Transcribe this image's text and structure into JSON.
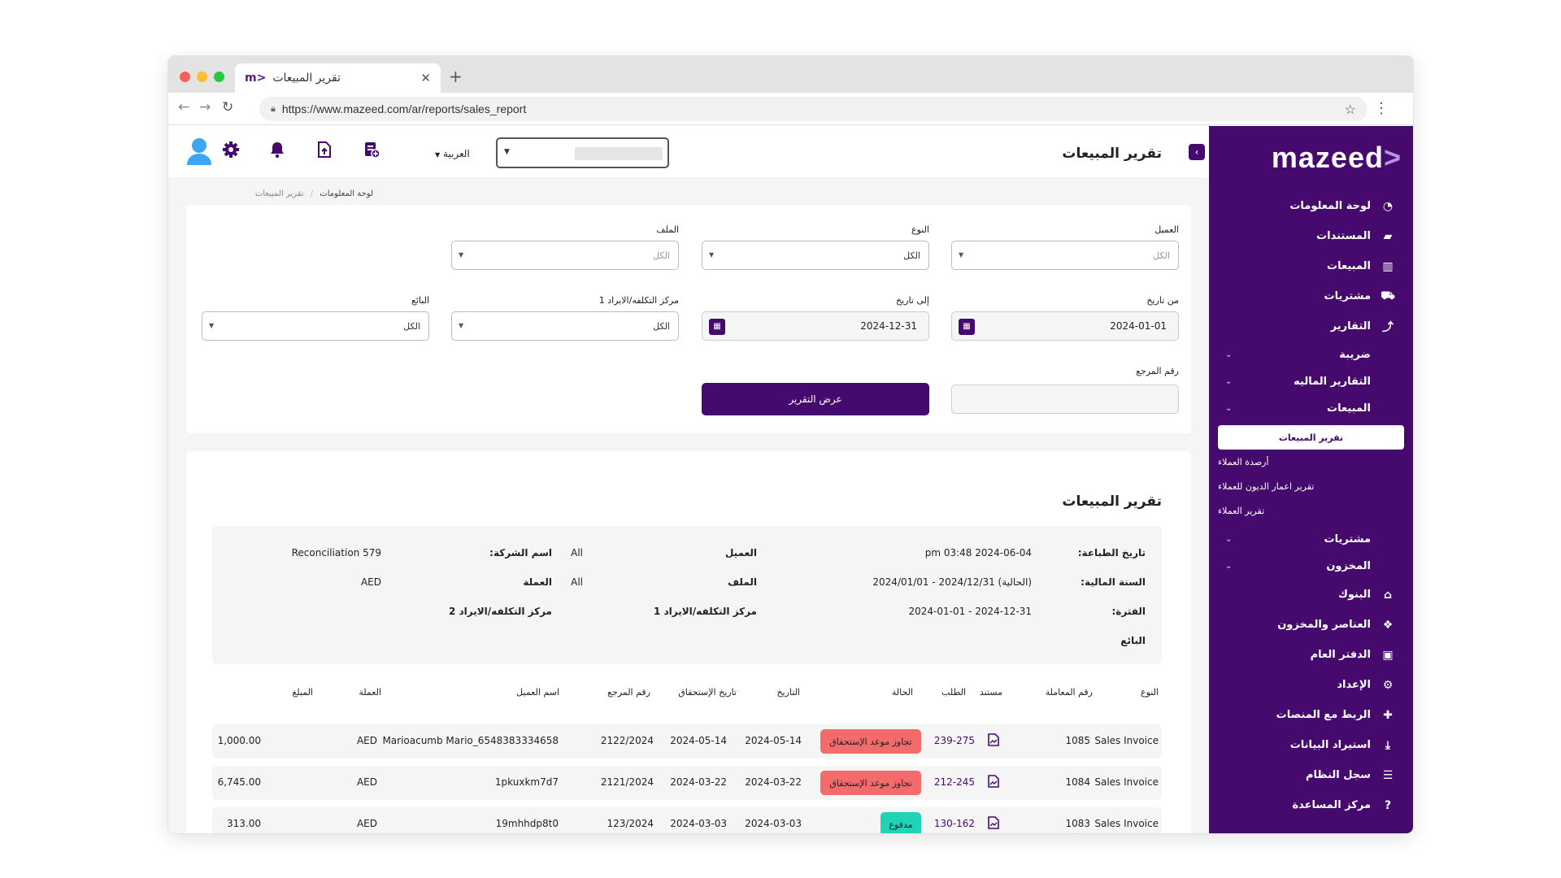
{
  "browser": {
    "tab_title": "تقرير المبيعات",
    "tab_logo": "m>",
    "url": "https://www.mazeed.com/ar/reports/sales_report"
  },
  "brand": {
    "name": "mazeed",
    "suffix": ">"
  },
  "sidebar": {
    "items": [
      {
        "label": "لوحة المعلومات",
        "icon": "dashboard-icon",
        "glyph": "◔"
      },
      {
        "label": "المستندات",
        "icon": "folder-icon",
        "glyph": "▰"
      },
      {
        "label": "المبيعات",
        "icon": "bar-chart-icon",
        "glyph": "▥"
      },
      {
        "label": "مشتريات",
        "icon": "cart-icon",
        "glyph": "⛟"
      },
      {
        "label": "التقارير",
        "icon": "line-chart-icon",
        "glyph": "⤴"
      }
    ],
    "groups": [
      {
        "label": "ضريبة"
      },
      {
        "label": "التقارير الماليه"
      },
      {
        "label": "المبيعات"
      }
    ],
    "sub_items": [
      {
        "label": "تقرير المبيعات",
        "active": true
      },
      {
        "label": "أرصدة العملاء"
      },
      {
        "label": "تقرير اعمار الديون للعملاء"
      },
      {
        "label": "تقرير العملاء"
      }
    ],
    "groups2": [
      {
        "label": "مشتريات"
      },
      {
        "label": "المخزون"
      }
    ],
    "items2": [
      {
        "label": "البنوك",
        "icon": "bank-icon",
        "glyph": "⌂"
      },
      {
        "label": "العناصر والمخزون",
        "icon": "boxes-icon",
        "glyph": "❖"
      },
      {
        "label": "الدفتر العام",
        "icon": "briefcase-icon",
        "glyph": "▣"
      },
      {
        "label": "الإعداد",
        "icon": "gear-icon",
        "glyph": "⚙"
      },
      {
        "label": "الربط مع المنصات",
        "icon": "puzzle-icon",
        "glyph": "✚"
      },
      {
        "label": "استيراد البيانات",
        "icon": "download-icon",
        "glyph": "⤓"
      },
      {
        "label": "سجل النظام",
        "icon": "database-icon",
        "glyph": "☰"
      },
      {
        "label": "مركز المساعدة",
        "icon": "help-icon",
        "glyph": "?"
      }
    ]
  },
  "topbar": {
    "title": "تقرير المبيعات",
    "language": "العربية"
  },
  "breadcrumb": {
    "home": "لوحة المعلومات",
    "current": "تقرير المبيعات",
    "separator": "/"
  },
  "filters": {
    "client_label": "العميل",
    "client_value": "الكل",
    "type_label": "النوع",
    "type_value": "الكل",
    "file_label": "الملف",
    "file_value": "الكل",
    "from_label": "من تاريخ",
    "from_value": "2024-01-01",
    "to_label": "إلى تاريخ",
    "to_value": "2024-12-31",
    "cc1_label": "مركز التكلفه/الايراد 1",
    "cc1_value": "الكل",
    "seller_label": "البائع",
    "seller_value": "الكل",
    "ref_label": "رقم المرجع",
    "submit": "عرض التقرير"
  },
  "report": {
    "title": "تقرير المبيعات",
    "summary": {
      "print_date_label": "تاريخ الطباعة:",
      "print_date": "pm 03:48 2024-06-04",
      "fiscal_label": "السنة المالية:",
      "fiscal": "(الحالية) 2024/12/31 - 2024/01/01",
      "period_label": "الفترة:",
      "period": "2024-12-31 - 2024-01-01",
      "seller_label": "البائع",
      "client_label": "العميل",
      "client": "All",
      "file_label": "الملف",
      "file": "All",
      "cc1_label": "مركز التكلفه/الايراد 1",
      "company_label": "اسم الشركة:",
      "company": "Reconciliation 579",
      "currency_label": "العملة",
      "currency": "AED",
      "cc2_label": "مركز التكلفه/الايراد 2"
    },
    "columns": {
      "type": "النوع",
      "txn": "رقم المعاملة",
      "doc": "مستند",
      "order": "الطلب",
      "status": "الحالة",
      "date": "التاريخ",
      "due": "تاريخ الإستحقاق",
      "ref": "رقم المرجع",
      "client": "اسم العميل",
      "currency": "العملة",
      "amount": "المبلغ"
    },
    "rows": [
      {
        "type": "Sales Invoice",
        "txn": "1085",
        "order": "239-275",
        "status": "تجاوز موعد الإستحقاق",
        "status_kind": "overdue",
        "date": "2024-05-14",
        "due": "2024-05-14",
        "ref": "2122/2024",
        "client": "Marioacumb Mario_6548383334658",
        "currency": "AED",
        "amount": "1,000.00"
      },
      {
        "type": "Sales Invoice",
        "txn": "1084",
        "order": "212-245",
        "status": "تجاوز موعد الإستحقاق",
        "status_kind": "overdue",
        "date": "2024-03-22",
        "due": "2024-03-22",
        "ref": "2121/2024",
        "client": "1pkuxkm7d7",
        "currency": "AED",
        "amount": "6,745.00"
      },
      {
        "type": "Sales Invoice",
        "txn": "1083",
        "order": "130-162",
        "status": "مدفوع",
        "status_kind": "paid",
        "date": "2024-03-03",
        "due": "2024-03-03",
        "ref": "123/2024",
        "client": "19mhhdp8t0",
        "currency": "AED",
        "amount": "313.00"
      }
    ]
  },
  "colors": {
    "brand": "#460a6f",
    "overdue": "#f36b6b",
    "paid": "#1fd3b6"
  }
}
